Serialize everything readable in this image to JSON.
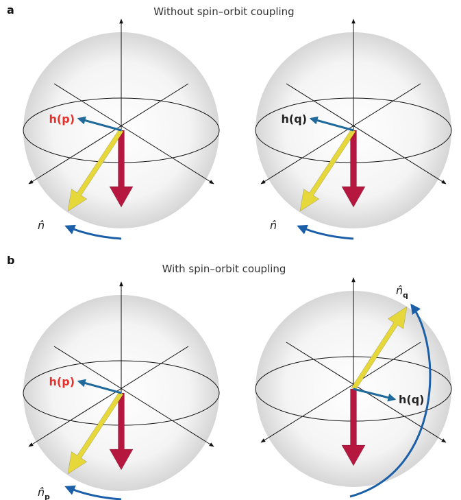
{
  "panels": [
    {
      "letter": "a",
      "title": "Without spin–orbit coupling",
      "spheres": [
        {
          "h_label": "h(p)",
          "n_label": {
            "text": "n̂"
          }
        },
        {
          "h_label": "h(q)",
          "n_label": {
            "text": "n̂"
          }
        }
      ]
    },
    {
      "letter": "b",
      "title": "With spin–orbit coupling",
      "spheres": [
        {
          "h_label": "h(p)",
          "n_label": {
            "text": "n̂",
            "sub": "p"
          }
        },
        {
          "h_label": "h(q)",
          "n_label": {
            "text": "n̂",
            "sub": "q"
          }
        }
      ]
    }
  ]
}
